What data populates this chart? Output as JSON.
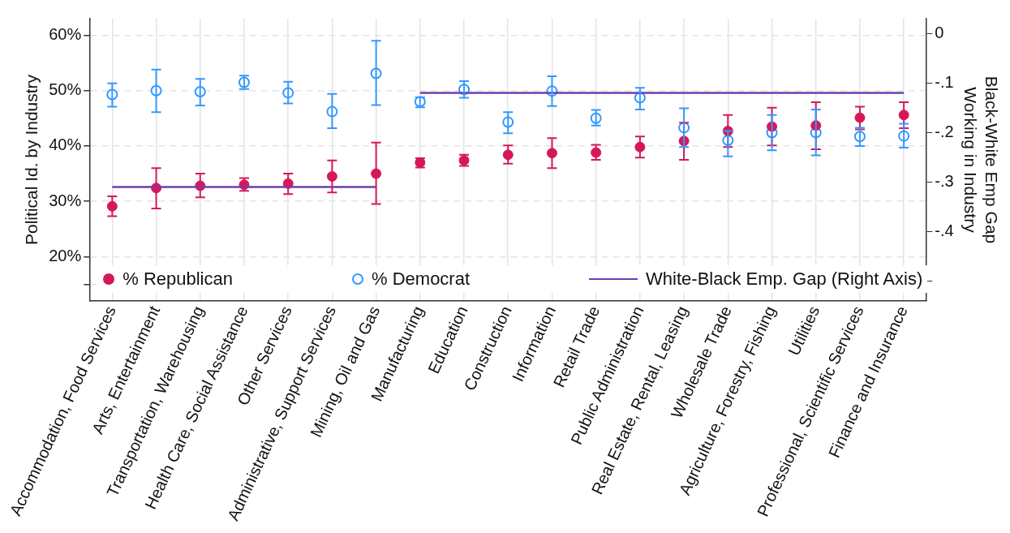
{
  "chart_data": {
    "type": "scatter",
    "ylabel": "Political Id. by Industry",
    "y2label": "Black-White Emp Gap\nWorking in Industry",
    "categories": [
      "Accommodation, Food Services",
      "Arts, Entertainment",
      "Transportation, Warehousing",
      "Health Care, Social Assistance",
      "Other Services",
      "Administrative, Support Services",
      "Mining, Oil and Gas",
      "Manufacturing",
      "Education",
      "Construction",
      "Information",
      "Retail Trade",
      "Public Administration",
      "Real Estate, Rental, Leasing",
      "Wholesale Trade",
      "Agriculture, Forestry, Fishing",
      "Utilities",
      "Professional, Scientific Services",
      "Finance and Insurance"
    ],
    "series": [
      {
        "name": "% Republican",
        "color": "#d6185a",
        "marker": "circle",
        "values": [
          29.1,
          32.4,
          32.8,
          33.0,
          33.2,
          34.5,
          35.0,
          37.0,
          37.4,
          38.4,
          38.7,
          38.8,
          39.8,
          40.9,
          42.7,
          43.5,
          43.7,
          45.1,
          45.6
        ],
        "errors": [
          [
            27.3,
            30.9
          ],
          [
            28.7,
            36.0
          ],
          [
            30.7,
            35.0
          ],
          [
            31.9,
            34.2
          ],
          [
            31.3,
            35.0
          ],
          [
            31.6,
            37.4
          ],
          [
            29.5,
            40.6
          ],
          [
            36.1,
            37.8
          ],
          [
            36.4,
            38.4
          ],
          [
            36.8,
            40.1
          ],
          [
            36.0,
            41.4
          ],
          [
            37.5,
            40.2
          ],
          [
            37.9,
            41.7
          ],
          [
            37.5,
            44.2
          ],
          [
            39.8,
            45.6
          ],
          [
            40.1,
            46.9
          ],
          [
            39.4,
            47.9
          ],
          [
            43.0,
            47.1
          ],
          [
            43.2,
            47.9
          ]
        ]
      },
      {
        "name": "% Democrat",
        "color": "#3399ff",
        "marker": "circle",
        "values": [
          49.3,
          50.0,
          49.8,
          51.5,
          49.6,
          46.2,
          53.1,
          48.0,
          50.2,
          44.3,
          49.9,
          45.0,
          48.7,
          43.3,
          41.0,
          42.4,
          42.4,
          41.7,
          41.8
        ],
        "errors": [
          [
            47.1,
            51.3
          ],
          [
            46.1,
            53.8
          ],
          [
            47.3,
            52.1
          ],
          [
            50.3,
            52.7
          ],
          [
            47.7,
            51.6
          ],
          [
            43.2,
            49.4
          ],
          [
            47.4,
            59.0
          ],
          [
            47.0,
            48.8
          ],
          [
            48.7,
            51.7
          ],
          [
            42.3,
            46.1
          ],
          [
            47.2,
            52.6
          ],
          [
            43.7,
            46.5
          ],
          [
            46.6,
            50.5
          ],
          [
            39.8,
            46.8
          ],
          [
            38.1,
            42.7
          ],
          [
            39.2,
            45.6
          ],
          [
            38.3,
            46.6
          ],
          [
            40.0,
            43.3
          ],
          [
            39.7,
            44.0
          ]
        ]
      },
      {
        "name": "White-Black Emp. Gap (Right Axis)",
        "type": "line",
        "axis": "y2",
        "color": "#6a3fb0",
        "marker": "none",
        "values": [
          -0.31,
          -0.31,
          -0.31,
          -0.31,
          -0.31,
          -0.31,
          -0.31,
          -0.12,
          -0.12,
          -0.12,
          -0.12,
          -0.12,
          -0.12,
          -0.12,
          -0.12,
          -0.12,
          -0.12,
          -0.12,
          -0.12
        ]
      }
    ],
    "ylim": [
      12,
      63
    ],
    "yticks": [
      {
        "value": 15,
        "label": null
      },
      {
        "value": 20,
        "label": "20%"
      },
      {
        "value": 30,
        "label": "30%"
      },
      {
        "value": 40,
        "label": "40%"
      },
      {
        "value": 50,
        "label": "50%"
      },
      {
        "value": 60,
        "label": "60%"
      }
    ],
    "y2lim": [
      -0.54,
      0.03
    ],
    "y2ticks": [
      {
        "value": -0.5,
        "label": null
      },
      {
        "value": -0.4,
        "label": "-.4"
      },
      {
        "value": -0.3,
        "label": "-.3"
      },
      {
        "value": -0.2,
        "label": "-.2"
      },
      {
        "value": -0.1,
        "label": "-.1"
      },
      0
    ],
    "grid": true,
    "legend": "bottom"
  }
}
